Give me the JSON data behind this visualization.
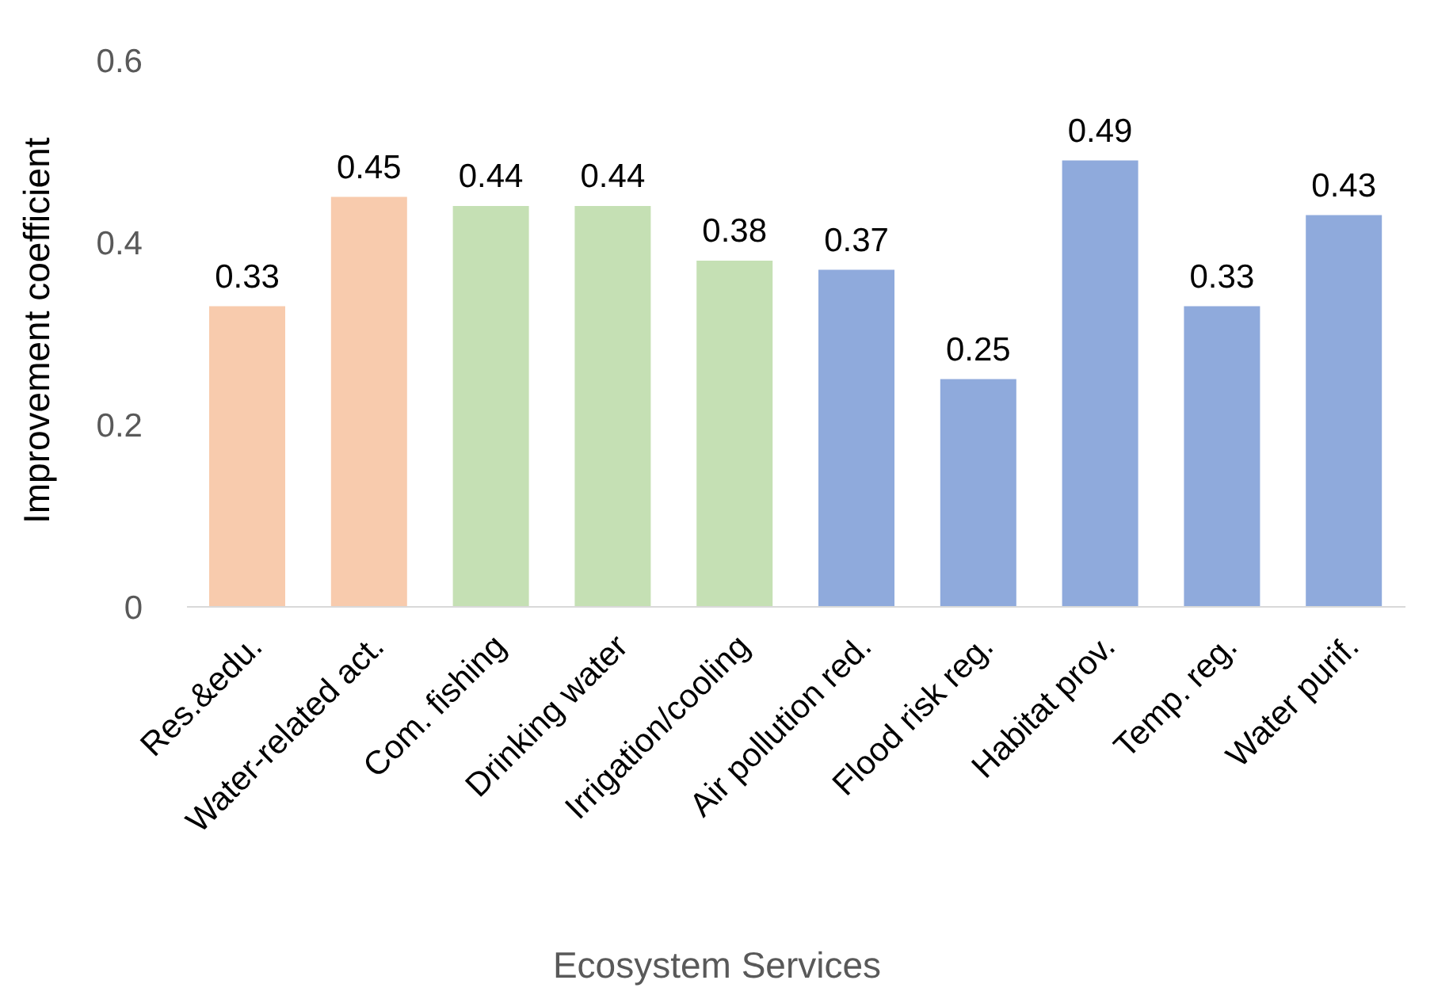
{
  "chart_data": {
    "type": "bar",
    "xlabel": "Ecosystem Services",
    "ylabel": "Improvement coefficient",
    "categories": [
      "Res.&edu.",
      "Water-related act.",
      "Com. fishing",
      "Drinking water",
      "Irrigation/cooling",
      "Air pollution red.",
      "Flood risk reg.",
      "Habitat prov.",
      "Temp. reg.",
      "Water purif."
    ],
    "values": [
      0.33,
      0.45,
      0.44,
      0.44,
      0.38,
      0.37,
      0.25,
      0.49,
      0.33,
      0.43
    ],
    "colors": [
      "#f8cbad",
      "#f8cbad",
      "#c5e0b4",
      "#c5e0b4",
      "#c5e0b4",
      "#8faadc",
      "#8faadc",
      "#8faadc",
      "#8faadc",
      "#8faadc"
    ],
    "ylim": [
      0,
      0.6
    ],
    "yticks": [
      0,
      0.2,
      0.4,
      0.6
    ],
    "data_labels": true,
    "grid": false,
    "legend": false
  }
}
